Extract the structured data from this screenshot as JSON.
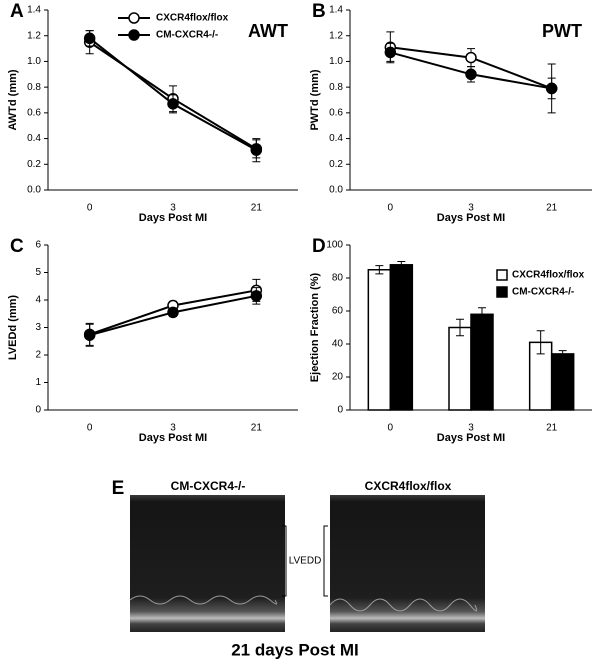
{
  "chart_data": [
    {
      "type": "line",
      "panel_label": "A",
      "annotation": "AWT",
      "ylabel": "AWTd (mm)",
      "xlabel": "Days Post MI",
      "categories": [
        "0",
        "3",
        "21"
      ],
      "ylim": [
        0,
        1.4
      ],
      "yticks": [
        {
          "value": 0,
          "label": "0.0"
        },
        0.2,
        0.4,
        0.6,
        0.8,
        {
          "value": 1,
          "label": "1.0"
        },
        1.2,
        1.4
      ],
      "legend": "upper center",
      "series": [
        {
          "name": "CXCR4flox/flox",
          "color": "#000000",
          "marker": "open",
          "values": [
            1.15,
            0.71,
            0.32
          ],
          "errors": [
            0.09,
            0.1,
            0.07
          ]
        },
        {
          "name": "CM-CXCR4-/-",
          "color": "#000000",
          "marker": "filled",
          "values": [
            1.18,
            0.67,
            0.31
          ],
          "errors": [
            0.06,
            0.07,
            0.09
          ]
        }
      ]
    },
    {
      "type": "line",
      "panel_label": "B",
      "annotation": "PWT",
      "ylabel": "PWTd (mm)",
      "xlabel": "Days Post MI",
      "categories": [
        "0",
        "3",
        "21"
      ],
      "ylim": [
        0,
        1.4
      ],
      "yticks": [
        {
          "value": 0,
          "label": "0.0"
        },
        0.2,
        0.4,
        0.6,
        0.8,
        {
          "value": 1,
          "label": "1.0"
        },
        1.2,
        1.4
      ],
      "series": [
        {
          "color": "#000000",
          "marker": "open",
          "values": [
            1.11,
            1.03,
            0.79
          ],
          "errors": [
            0.12,
            0.07,
            0.19
          ]
        },
        {
          "color": "#000000",
          "marker": "filled",
          "values": [
            1.07,
            0.9,
            0.79
          ],
          "errors": [
            0.07,
            0.06,
            0.08
          ]
        }
      ]
    },
    {
      "type": "line",
      "panel_label": "C",
      "ylabel": "LVEDd (mm)",
      "xlabel": "Days Post MI",
      "categories": [
        "0",
        "3",
        "21"
      ],
      "ylim": [
        0,
        6
      ],
      "yticks": [
        0,
        1,
        2,
        3,
        4,
        5,
        6
      ],
      "series": [
        {
          "color": "#000000",
          "marker": "open",
          "values": [
            2.75,
            3.8,
            4.35
          ],
          "errors": [
            0.4,
            0.15,
            0.4
          ]
        },
        {
          "color": "#000000",
          "marker": "filled",
          "values": [
            2.72,
            3.55,
            4.15
          ],
          "errors": [
            0.4,
            0.15,
            0.3
          ]
        }
      ]
    },
    {
      "type": "bar",
      "panel_label": "D",
      "ylabel": "Ejection Fraction (%)",
      "xlabel": "Days Post MI",
      "categories": [
        "0",
        "3",
        "21"
      ],
      "ylim": [
        0,
        100
      ],
      "yticks": [
        0,
        20,
        40,
        60,
        80,
        100
      ],
      "legend": "right",
      "series": [
        {
          "name": "CXCR4flox/flox",
          "color": "#ffffff",
          "values": [
            85,
            50,
            41
          ],
          "errors": [
            2.5,
            5,
            7
          ]
        },
        {
          "name": "CM-CXCR4-/-",
          "color": "#000000",
          "values": [
            88,
            58,
            34
          ],
          "errors": [
            2,
            4,
            2
          ]
        }
      ]
    }
  ],
  "panel_e": {
    "panel_label": "E",
    "left_title": "CM-CXCR4-/-",
    "right_title": "CXCR4flox/flox",
    "marker_label": "LVEDD",
    "caption": "21 days Post MI"
  }
}
